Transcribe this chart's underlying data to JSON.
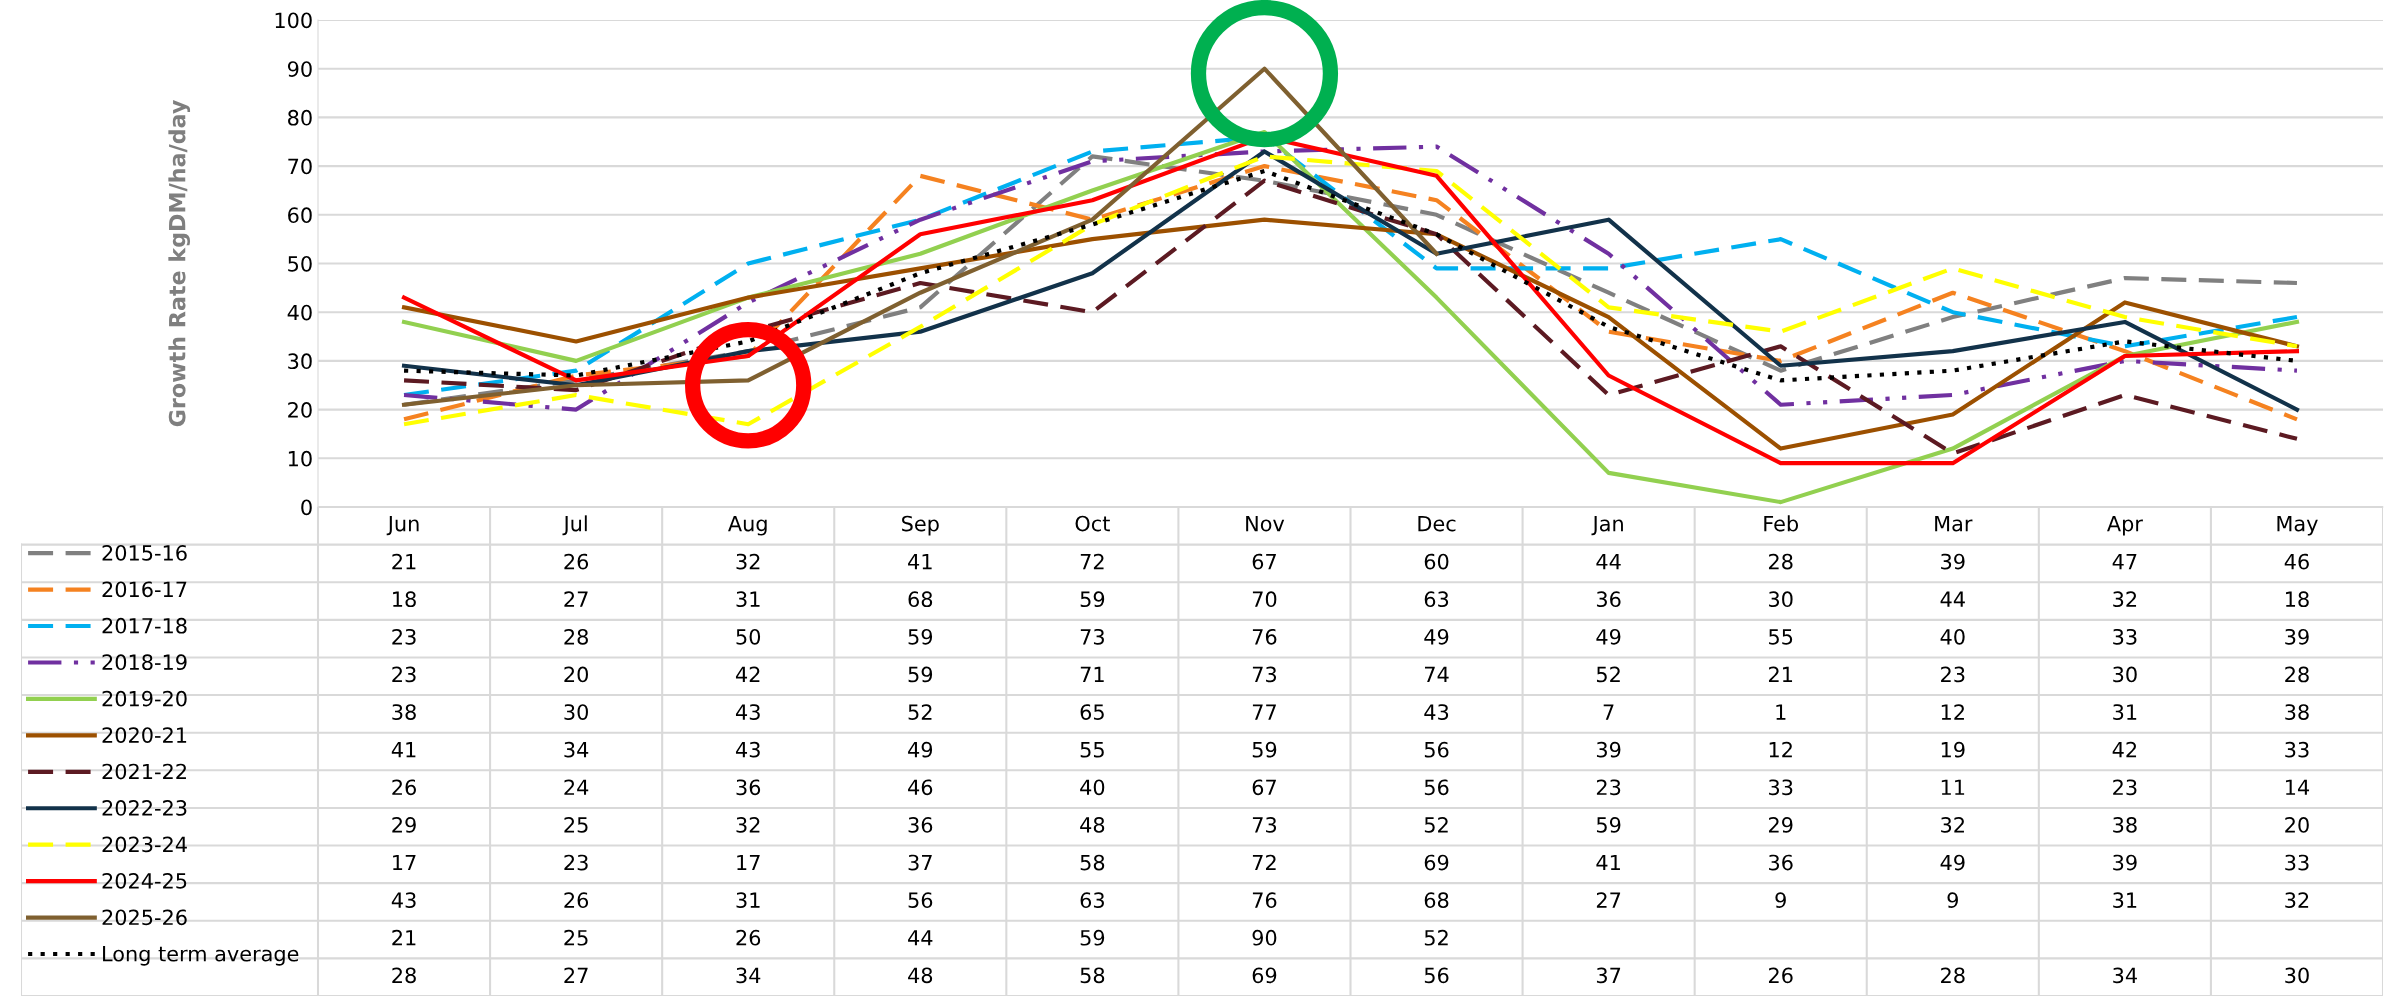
{
  "chart_data": {
    "type": "line",
    "ylabel": "Growth Rate kgDM/ha/day",
    "categories": [
      "Jun",
      "Jul",
      "Aug",
      "Sep",
      "Oct",
      "Nov",
      "Dec",
      "Jan",
      "Feb",
      "Mar",
      "Apr",
      "May"
    ],
    "series": [
      {
        "name": "2015-16",
        "color": "#808080",
        "line_style": "dashed",
        "values": [
          21,
          26,
          32,
          41,
          72,
          67,
          60,
          44,
          28,
          39,
          47,
          46
        ]
      },
      {
        "name": "2016-17",
        "color": "#f58220",
        "line_style": "dashed",
        "values": [
          18,
          27,
          31,
          68,
          59,
          70,
          63,
          36,
          30,
          44,
          32,
          18
        ]
      },
      {
        "name": "2017-18",
        "color": "#00b0f0",
        "line_style": "dashed",
        "values": [
          23,
          28,
          50,
          59,
          73,
          76,
          49,
          49,
          55,
          40,
          33,
          39
        ]
      },
      {
        "name": "2018-19",
        "color": "#7030a0",
        "line_style": "dashdot",
        "values": [
          23,
          20,
          42,
          59,
          71,
          73,
          74,
          52,
          21,
          23,
          30,
          28
        ]
      },
      {
        "name": "2019-20",
        "color": "#92d050",
        "line_style": "solid",
        "values": [
          38,
          30,
          43,
          52,
          65,
          77,
          43,
          7,
          1,
          12,
          31,
          38
        ]
      },
      {
        "name": "2020-21",
        "color": "#9c5000",
        "line_style": "solid",
        "values": [
          41,
          34,
          43,
          49,
          55,
          59,
          56,
          39,
          12,
          19,
          42,
          33
        ]
      },
      {
        "name": "2021-22",
        "color": "#5c1a22",
        "line_style": "dashed",
        "values": [
          26,
          24,
          36,
          46,
          40,
          67,
          56,
          23,
          33,
          11,
          23,
          14
        ]
      },
      {
        "name": "2022-23",
        "color": "#12324a",
        "line_style": "solid",
        "values": [
          29,
          25,
          32,
          36,
          48,
          73,
          52,
          59,
          29,
          32,
          38,
          20
        ]
      },
      {
        "name": "2023-24",
        "color": "#ffff00",
        "line_style": "dashed",
        "values": [
          17,
          23,
          17,
          37,
          58,
          72,
          69,
          41,
          36,
          49,
          39,
          33
        ]
      },
      {
        "name": "2024-25",
        "color": "#ff0000",
        "line_style": "solid",
        "values": [
          43,
          26,
          31,
          56,
          63,
          76,
          68,
          27,
          9,
          9,
          31,
          32
        ]
      },
      {
        "name": "2025-26",
        "color": "#7f6030",
        "line_style": "solid",
        "values": [
          21,
          25,
          26,
          44,
          59,
          90,
          52,
          null,
          null,
          null,
          null,
          null
        ]
      },
      {
        "name": "Long term average",
        "color": "#000000",
        "line_style": "dotted",
        "values": [
          28,
          27,
          34,
          48,
          58,
          69,
          56,
          37,
          26,
          28,
          34,
          30
        ]
      }
    ],
    "ylim": [
      0,
      100
    ],
    "yticks": [
      0,
      10,
      20,
      30,
      40,
      50,
      60,
      70,
      80,
      90,
      100
    ],
    "grid": "y",
    "legend": "bottom",
    "data_labels": true
  }
}
